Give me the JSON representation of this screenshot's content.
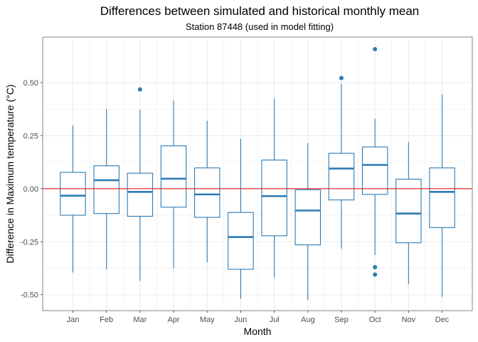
{
  "chart_data": {
    "type": "box",
    "title": "Differences between simulated and historical monthly mean",
    "subtitle": "Station 87448 (used in model fitting)",
    "xlabel": "Month",
    "ylabel": "Difference in Maximum temperature (°C)",
    "ylim": [
      -0.575,
      0.715
    ],
    "yticks": [
      -0.5,
      -0.25,
      0.0,
      0.25,
      0.5
    ],
    "ytick_labels": [
      "-0.50",
      "-0.25",
      "0.00",
      "0.25",
      "0.50"
    ],
    "grid": true,
    "reference_line": 0.0,
    "box_color": "#2c7bb6",
    "reference_line_color": "#e41a1c",
    "categories": [
      "Jan",
      "Feb",
      "Mar",
      "Apr",
      "May",
      "Jun",
      "Jul",
      "Aug",
      "Sep",
      "Oct",
      "Nov",
      "Dec"
    ],
    "boxes": [
      {
        "min": -0.395,
        "q1": -0.125,
        "median": -0.033,
        "q3": 0.077,
        "max": 0.298,
        "outliers": []
      },
      {
        "min": -0.38,
        "q1": -0.117,
        "median": 0.04,
        "q3": 0.108,
        "max": 0.375,
        "outliers": []
      },
      {
        "min": -0.435,
        "q1": -0.13,
        "median": -0.015,
        "q3": 0.073,
        "max": 0.372,
        "outliers": [
          0.468
        ]
      },
      {
        "min": -0.375,
        "q1": -0.087,
        "median": 0.047,
        "q3": 0.202,
        "max": 0.415,
        "outliers": []
      },
      {
        "min": -0.348,
        "q1": -0.135,
        "median": -0.027,
        "q3": 0.098,
        "max": 0.32,
        "outliers": []
      },
      {
        "min": -0.52,
        "q1": -0.38,
        "median": -0.228,
        "q3": -0.112,
        "max": 0.235,
        "outliers": []
      },
      {
        "min": -0.42,
        "q1": -0.222,
        "median": -0.035,
        "q3": 0.135,
        "max": 0.425,
        "outliers": []
      },
      {
        "min": -0.525,
        "q1": -0.265,
        "median": -0.103,
        "q3": -0.005,
        "max": 0.215,
        "outliers": []
      },
      {
        "min": -0.283,
        "q1": -0.053,
        "median": 0.095,
        "q3": 0.167,
        "max": 0.495,
        "outliers": [
          0.522
        ]
      },
      {
        "min": -0.313,
        "q1": -0.027,
        "median": 0.112,
        "q3": 0.197,
        "max": 0.33,
        "outliers": [
          0.658,
          -0.37,
          -0.405
        ]
      },
      {
        "min": -0.45,
        "q1": -0.255,
        "median": -0.117,
        "q3": 0.045,
        "max": 0.22,
        "outliers": []
      },
      {
        "min": -0.51,
        "q1": -0.183,
        "median": -0.015,
        "q3": 0.098,
        "max": 0.445,
        "outliers": []
      }
    ]
  }
}
